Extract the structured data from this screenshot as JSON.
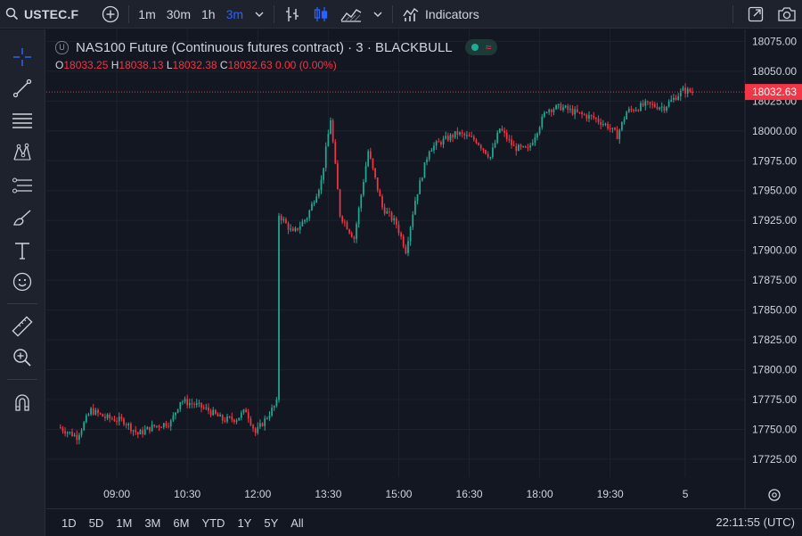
{
  "toolbar": {
    "symbol": "USTEC.F",
    "intervals": [
      "1m",
      "30m",
      "1h",
      "3m"
    ],
    "active_interval": "3m",
    "indicators_label": "Indicators"
  },
  "legend": {
    "title": "NAS100 Future (Continuous futures contract) · 3 · BLACKBULL",
    "badge_letter": "U",
    "open_key": "O",
    "open": "18033.25",
    "high_key": "H",
    "high": "18038.13",
    "low_key": "L",
    "low": "18032.38",
    "close_key": "C",
    "close": "18032.63",
    "change": "0.00 (0.00%)"
  },
  "bottom": {
    "ranges": [
      "1D",
      "5D",
      "1M",
      "3M",
      "6M",
      "YTD",
      "1Y",
      "5Y",
      "All"
    ],
    "clock": "22:11:55 (UTC)"
  },
  "colors": {
    "up": "#22ab94",
    "down": "#f23645",
    "accent": "#2962ff",
    "grid": "#1e222d"
  },
  "icons": [
    "search-icon",
    "plus-circle-icon",
    "chevron-down-icon",
    "bar-chart-icon",
    "candles-icon",
    "area-chart-icon",
    "indicators-icon",
    "fullscreen-icon",
    "camera-icon",
    "crosshair-icon",
    "trendline-icon",
    "fib-icon",
    "pattern-icon",
    "forecast-icon",
    "brush-icon",
    "text-icon",
    "emoji-icon",
    "ruler-icon",
    "zoom-icon",
    "magnet-icon",
    "settings-icon"
  ],
  "chart_data": {
    "type": "candlestick",
    "ylim": [
      17710,
      18085
    ],
    "y_ticks": [
      17725,
      17750,
      17775,
      17800,
      17825,
      17850,
      17875,
      17900,
      17925,
      17950,
      17975,
      18000,
      18025,
      18050,
      18075
    ],
    "y_tick_labels": [
      "17725.00",
      "17750.00",
      "17775.00",
      "17800.00",
      "17825.00",
      "17850.00",
      "17875.00",
      "17900.00",
      "17925.00",
      "17950.00",
      "17975.00",
      "18000.00",
      "18025.00",
      "18050.00",
      "18075.00"
    ],
    "x_ticks": [
      "09:00",
      "10:30",
      "12:00",
      "13:30",
      "15:00",
      "16:30",
      "18:00",
      "19:30",
      "5"
    ],
    "last_price": 18032.63,
    "last_price_label": "18032.63",
    "price_series": [
      [
        "07:48",
        17752
      ],
      [
        "08:12",
        17744
      ],
      [
        "08:30",
        17766
      ],
      [
        "08:48",
        17760
      ],
      [
        "09:12",
        17757
      ],
      [
        "09:30",
        17746
      ],
      [
        "09:48",
        17752
      ],
      [
        "10:12",
        17756
      ],
      [
        "10:24",
        17774
      ],
      [
        "10:42",
        17771
      ],
      [
        "11:00",
        17766
      ],
      [
        "11:18",
        17758
      ],
      [
        "11:36",
        17759
      ],
      [
        "11:48",
        17766
      ],
      [
        "12:00",
        17747
      ],
      [
        "12:12",
        17758
      ],
      [
        "12:27",
        17772
      ],
      [
        "12:30",
        17930
      ],
      [
        "12:48",
        17914
      ],
      [
        "13:06",
        17928
      ],
      [
        "13:24",
        17958
      ],
      [
        "13:36",
        18010
      ],
      [
        "13:48",
        17930
      ],
      [
        "14:06",
        17910
      ],
      [
        "14:24",
        17983
      ],
      [
        "14:42",
        17936
      ],
      [
        "15:00",
        17922
      ],
      [
        "15:12",
        17900
      ],
      [
        "15:24",
        17942
      ],
      [
        "15:42",
        17985
      ],
      [
        "16:00",
        17992
      ],
      [
        "16:18",
        17998
      ],
      [
        "16:42",
        17992
      ],
      [
        "17:00",
        17978
      ],
      [
        "17:12",
        18002
      ],
      [
        "17:30",
        17986
      ],
      [
        "17:48",
        17984
      ],
      [
        "18:12",
        18018
      ],
      [
        "18:30",
        18020
      ],
      [
        "18:54",
        18014
      ],
      [
        "19:12",
        18011
      ],
      [
        "19:30",
        18004
      ],
      [
        "19:42",
        17996
      ],
      [
        "19:54",
        18016
      ],
      [
        "20:18",
        18022
      ],
      [
        "20:42",
        18020
      ],
      [
        "21:06",
        18034
      ],
      [
        "21:18",
        18032.63
      ]
    ]
  }
}
